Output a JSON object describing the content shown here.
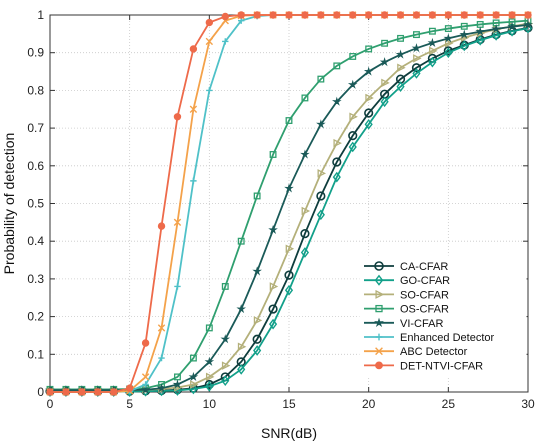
{
  "chart_data": {
    "type": "line",
    "xlabel": "SNR(dB)",
    "ylabel": "Probability of detection",
    "xlim": [
      0,
      30
    ],
    "ylim": [
      0,
      1
    ],
    "x_ticks": [
      "0",
      "5",
      "10",
      "15",
      "20",
      "25",
      "30"
    ],
    "y_ticks": [
      "0",
      "0.1",
      "0.2",
      "0.3",
      "0.4",
      "0.5",
      "0.6",
      "0.7",
      "0.8",
      "0.9",
      "1"
    ],
    "grid": true,
    "legend_position": "bottom-right",
    "x": [
      0,
      1,
      2,
      3,
      4,
      5,
      6,
      7,
      8,
      9,
      10,
      11,
      12,
      13,
      14,
      15,
      16,
      17,
      18,
      19,
      20,
      21,
      22,
      23,
      24,
      25,
      26,
      27,
      28,
      29,
      30
    ],
    "series": [
      {
        "name": "CA-CFAR",
        "color": "#0e3d3d",
        "marker": "circle",
        "values": [
          0.002,
          0.002,
          0.002,
          0.002,
          0.002,
          0.002,
          0.003,
          0.004,
          0.006,
          0.01,
          0.02,
          0.04,
          0.08,
          0.14,
          0.22,
          0.31,
          0.42,
          0.52,
          0.61,
          0.68,
          0.74,
          0.79,
          0.83,
          0.86,
          0.885,
          0.905,
          0.92,
          0.935,
          0.948,
          0.958,
          0.966
        ]
      },
      {
        "name": "GO-CFAR",
        "color": "#12a08a",
        "marker": "diamond",
        "values": [
          0.001,
          0.001,
          0.001,
          0.001,
          0.001,
          0.001,
          0.002,
          0.003,
          0.004,
          0.008,
          0.015,
          0.03,
          0.06,
          0.11,
          0.18,
          0.27,
          0.37,
          0.47,
          0.57,
          0.65,
          0.71,
          0.77,
          0.81,
          0.845,
          0.875,
          0.9,
          0.918,
          0.933,
          0.946,
          0.957,
          0.965
        ]
      },
      {
        "name": "SO-CFAR",
        "color": "#b4b07a",
        "marker": "triangle-right",
        "values": [
          0.005,
          0.005,
          0.005,
          0.005,
          0.005,
          0.005,
          0.006,
          0.008,
          0.012,
          0.02,
          0.04,
          0.07,
          0.12,
          0.19,
          0.28,
          0.38,
          0.48,
          0.58,
          0.66,
          0.73,
          0.78,
          0.82,
          0.86,
          0.885,
          0.905,
          0.925,
          0.94,
          0.952,
          0.962,
          0.97,
          0.977
        ]
      },
      {
        "name": "OS-CFAR",
        "color": "#2f9f6f",
        "marker": "square",
        "values": [
          0.007,
          0.007,
          0.007,
          0.007,
          0.007,
          0.008,
          0.01,
          0.02,
          0.04,
          0.09,
          0.17,
          0.28,
          0.4,
          0.52,
          0.63,
          0.72,
          0.78,
          0.83,
          0.865,
          0.89,
          0.91,
          0.925,
          0.938,
          0.948,
          0.957,
          0.964,
          0.97,
          0.975,
          0.979,
          0.982,
          0.985
        ]
      },
      {
        "name": "VI-CFAR",
        "color": "#1a5a58",
        "marker": "star",
        "values": [
          0.005,
          0.005,
          0.005,
          0.005,
          0.005,
          0.005,
          0.006,
          0.01,
          0.02,
          0.04,
          0.08,
          0.14,
          0.22,
          0.32,
          0.43,
          0.54,
          0.63,
          0.71,
          0.77,
          0.815,
          0.85,
          0.875,
          0.895,
          0.912,
          0.926,
          0.938,
          0.948,
          0.956,
          0.963,
          0.969,
          0.974
        ]
      },
      {
        "name": "Enhanced Detector",
        "color": "#4fc1c8",
        "marker": "plus",
        "values": [
          0.0,
          0.0,
          0.0,
          0.0,
          0.0,
          0.002,
          0.02,
          0.09,
          0.28,
          0.56,
          0.8,
          0.93,
          0.985,
          0.997,
          1.0,
          1.0,
          1.0,
          1.0,
          1.0,
          1.0,
          1.0,
          1.0,
          1.0,
          1.0,
          1.0,
          1.0,
          1.0,
          1.0,
          1.0,
          1.0,
          1.0
        ]
      },
      {
        "name": "ABC Detector",
        "color": "#f4a24a",
        "marker": "cross",
        "values": [
          0.0,
          0.0,
          0.0,
          0.0,
          0.0,
          0.003,
          0.04,
          0.17,
          0.45,
          0.75,
          0.93,
          0.985,
          0.998,
          1.0,
          1.0,
          1.0,
          1.0,
          1.0,
          1.0,
          1.0,
          1.0,
          1.0,
          1.0,
          1.0,
          1.0,
          1.0,
          1.0,
          1.0,
          1.0,
          1.0,
          1.0
        ]
      },
      {
        "name": "DET-NTVI-CFAR",
        "color": "#ee6a4a",
        "marker": "filled-circle",
        "values": [
          0.0,
          0.0,
          0.0,
          0.0,
          0.0,
          0.01,
          0.13,
          0.44,
          0.73,
          0.91,
          0.98,
          0.996,
          1.0,
          1.0,
          1.0,
          1.0,
          1.0,
          1.0,
          1.0,
          1.0,
          1.0,
          1.0,
          1.0,
          1.0,
          1.0,
          1.0,
          1.0,
          1.0,
          1.0,
          1.0,
          1.0
        ]
      }
    ]
  }
}
